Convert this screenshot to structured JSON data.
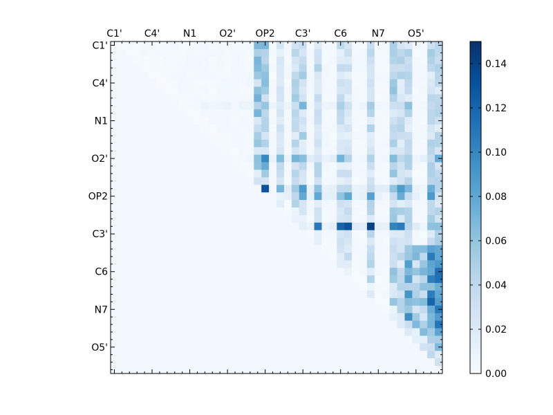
{
  "chart_data": {
    "type": "heatmap",
    "title": "",
    "xlabel": "",
    "ylabel": "",
    "n": 44,
    "x_tick_labels": [
      "C1'",
      "C4'",
      "N1",
      "O2'",
      "OP2",
      "C3'",
      "C6",
      "N7",
      "O5'"
    ],
    "y_tick_labels": [
      "C1'",
      "C4'",
      "N1",
      "O2'",
      "OP2",
      "C3'",
      "C6",
      "N7",
      "O5'"
    ],
    "label_every": 5,
    "colorbar": {
      "min": 0.0,
      "max": 0.15,
      "tick_labels": [
        "0.00",
        "0.02",
        "0.04",
        "0.06",
        "0.08",
        "0.10",
        "0.12",
        "0.14"
      ],
      "colors": [
        "#f7fbff",
        "#deebf7",
        "#c6dbef",
        "#9ecae1",
        "#6baed6",
        "#4292c6",
        "#2171b5",
        "#08519c",
        "#08306b"
      ]
    },
    "background_value": 0.004,
    "peak_values": [
      {
        "row": 19,
        "col": 20,
        "value": 0.13
      },
      {
        "row": 24,
        "col": 34,
        "value": 0.14
      },
      {
        "row": 24,
        "col": 31,
        "value": 0.13
      },
      {
        "row": 24,
        "col": 30,
        "value": 0.12
      },
      {
        "row": 15,
        "col": 20,
        "value": 0.1
      },
      {
        "row": 34,
        "col": 42,
        "value": 0.12
      }
    ]
  }
}
